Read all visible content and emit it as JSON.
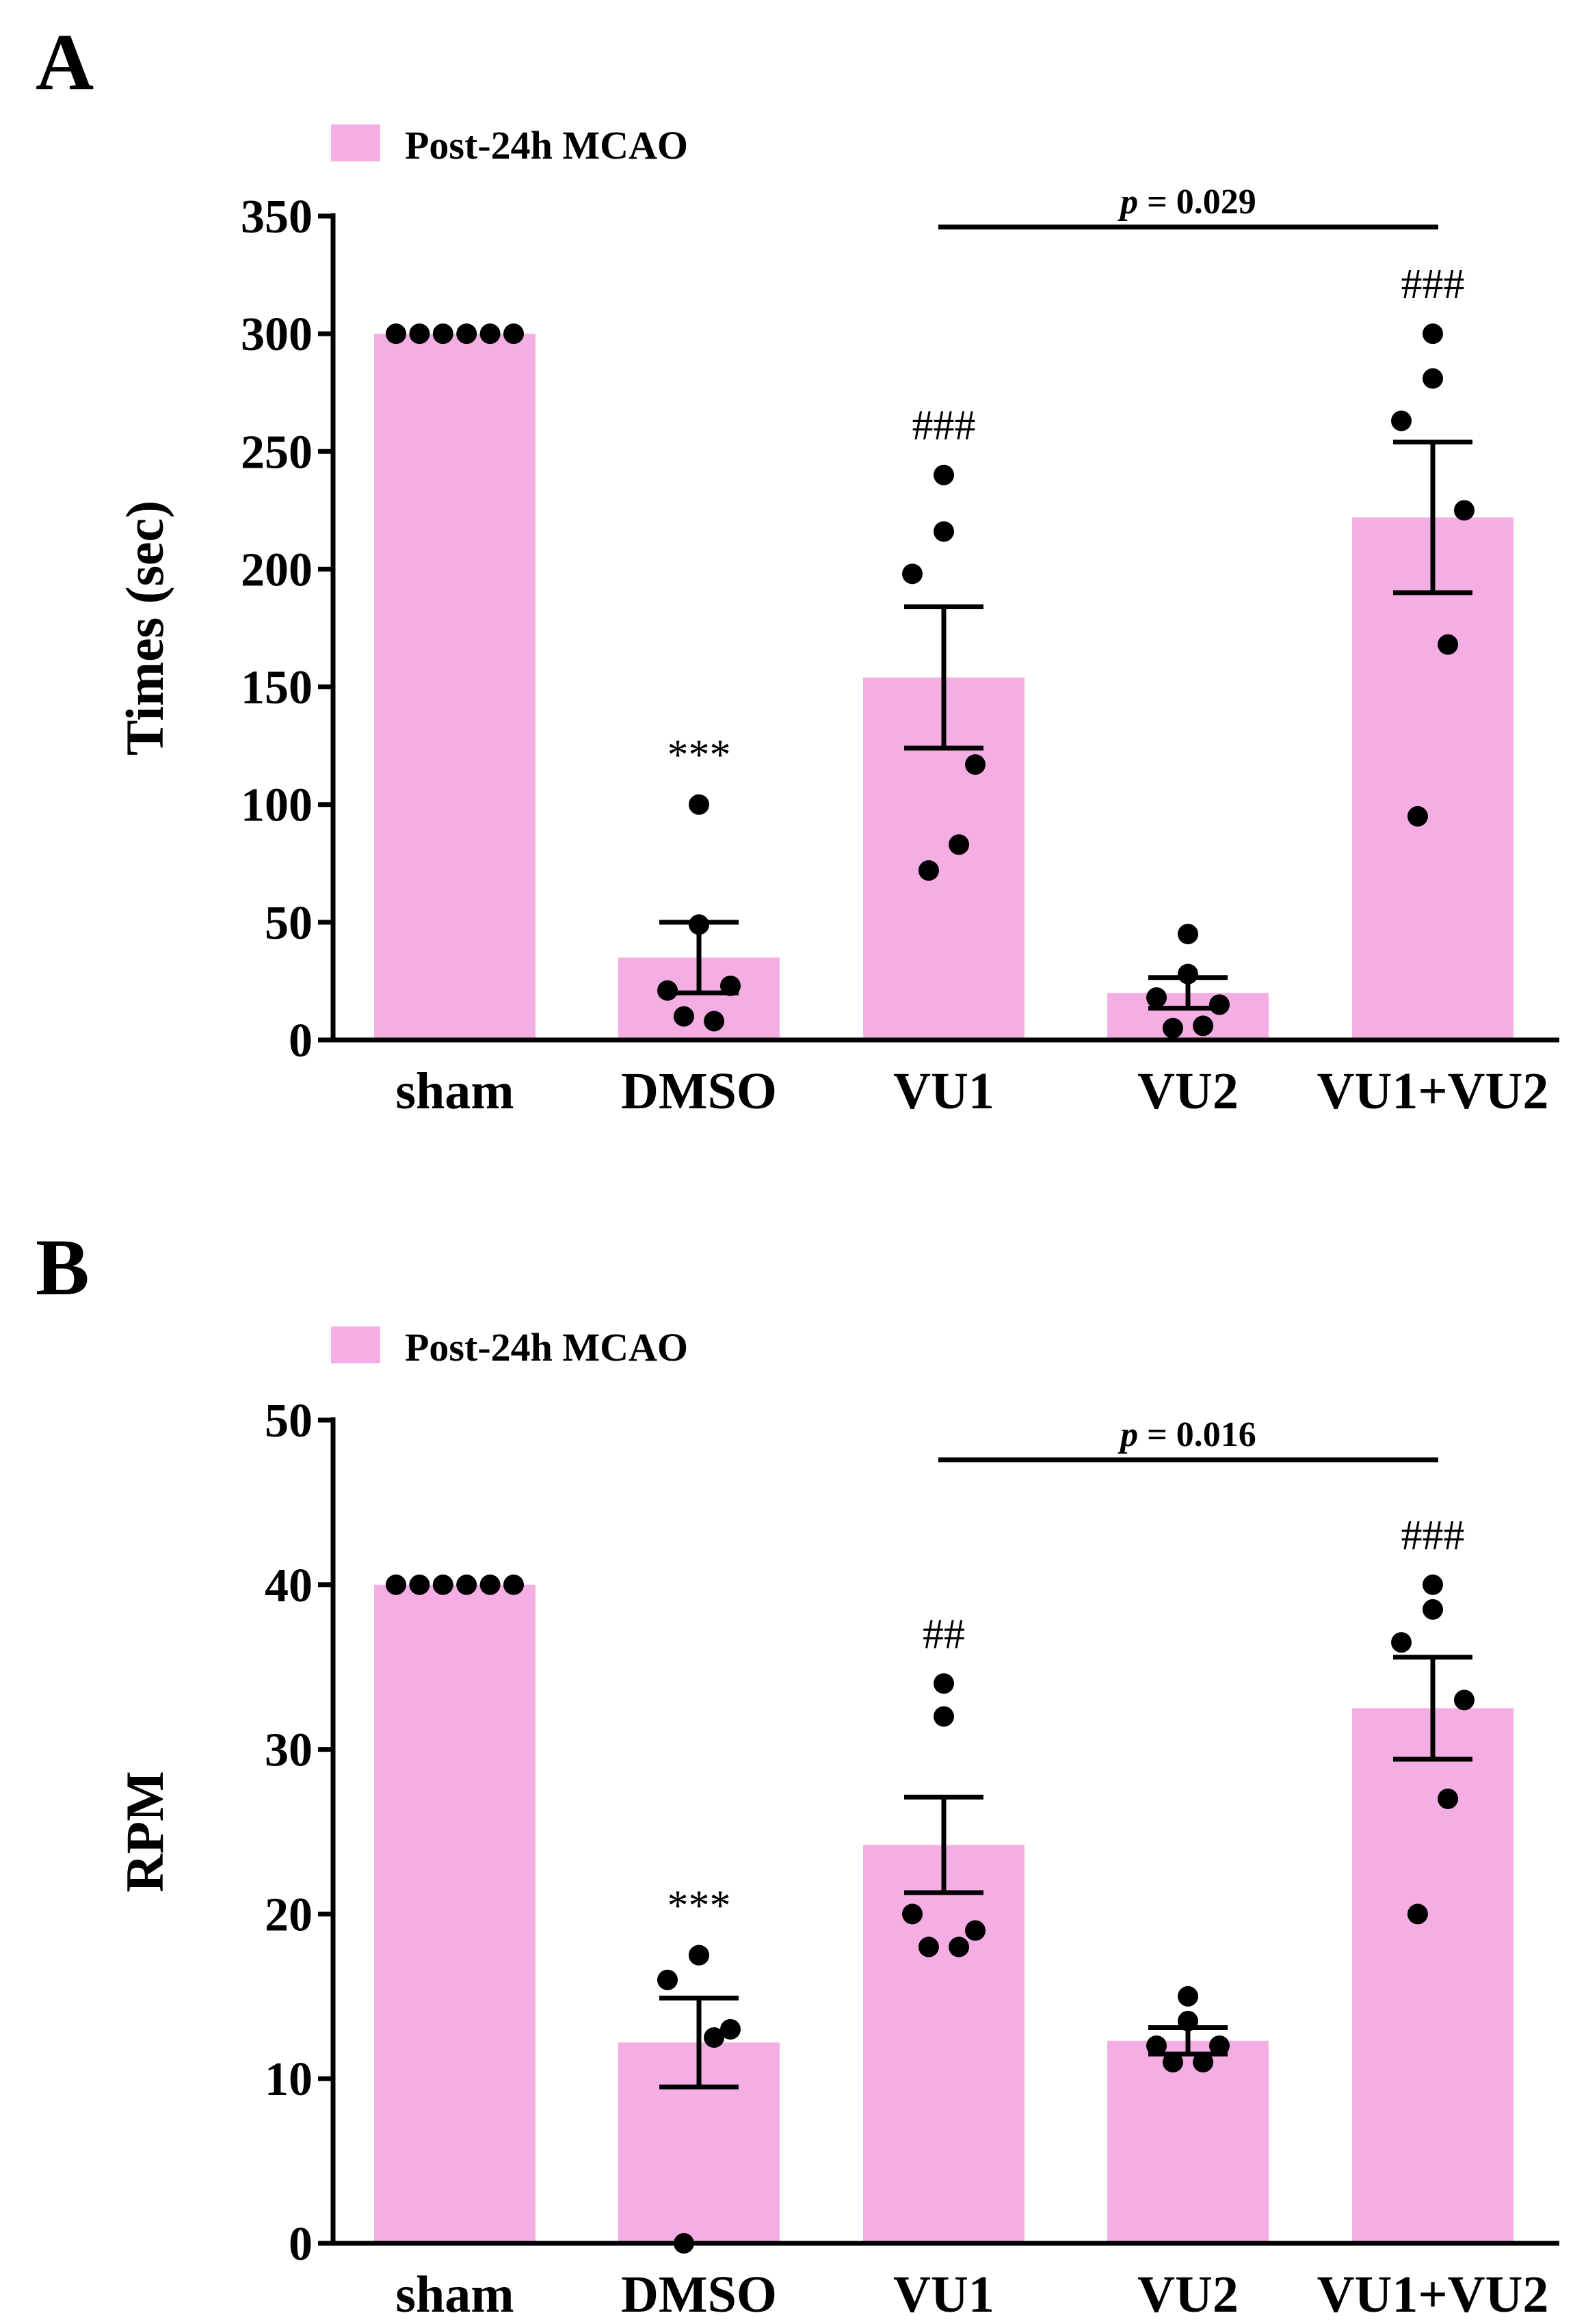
{
  "chart_data": [
    {
      "panel_label": "A",
      "type": "bar",
      "legend": "Post-24h MCAO",
      "bar_color": "#f5aee4",
      "categories": [
        "sham",
        "DMSO",
        "VU1",
        "VU2",
        "VU1+VU2"
      ],
      "values": [
        300,
        35,
        154,
        20,
        222
      ],
      "sem": [
        0,
        15,
        30,
        6.5,
        32
      ],
      "points": [
        [
          300,
          300,
          300,
          300,
          300,
          300
        ],
        [
          100,
          49,
          21,
          23,
          8,
          10
        ],
        [
          240,
          216,
          198,
          117,
          83,
          72
        ],
        [
          45,
          28,
          18,
          15,
          6,
          5
        ],
        [
          300,
          281,
          263,
          225,
          168,
          95
        ]
      ],
      "significance": [
        "",
        "***",
        "###",
        "",
        "###"
      ],
      "comparison": {
        "from": 2,
        "to": 4,
        "label_italic": "p",
        "label_rest": " = 0.029"
      },
      "ylabel": "Times (sec)",
      "xlabel": "",
      "ylim": [
        0,
        350
      ],
      "yticks": [
        0,
        50,
        100,
        150,
        200,
        250,
        300,
        350
      ],
      "grid": false
    },
    {
      "panel_label": "B",
      "type": "bar",
      "legend": "Post-24h MCAO",
      "bar_color": "#f5aee4",
      "categories": [
        "sham",
        "DMSO",
        "VU1",
        "VU2",
        "VU1+VU2"
      ],
      "values": [
        40,
        12.2,
        24.2,
        12.3,
        32.5
      ],
      "sem": [
        0,
        2.7,
        2.9,
        0.8,
        3.1
      ],
      "points": [
        [
          40,
          40,
          40,
          40,
          40,
          40
        ],
        [
          17.5,
          17.5,
          16,
          13,
          12.5,
          0
        ],
        [
          34,
          32,
          20,
          19,
          18,
          18
        ],
        [
          15,
          13.5,
          12,
          12,
          11,
          11
        ],
        [
          40,
          38.5,
          36.5,
          33,
          27,
          20
        ]
      ],
      "significance": [
        "",
        "***",
        "##",
        "",
        "###"
      ],
      "comparison": {
        "from": 2,
        "to": 4,
        "label_italic": "p",
        "label_rest": " = 0.016"
      },
      "ylabel": "RPM",
      "xlabel": "",
      "ylim": [
        0,
        50
      ],
      "yticks": [
        0,
        10,
        20,
        30,
        40,
        50
      ],
      "grid": false
    }
  ]
}
